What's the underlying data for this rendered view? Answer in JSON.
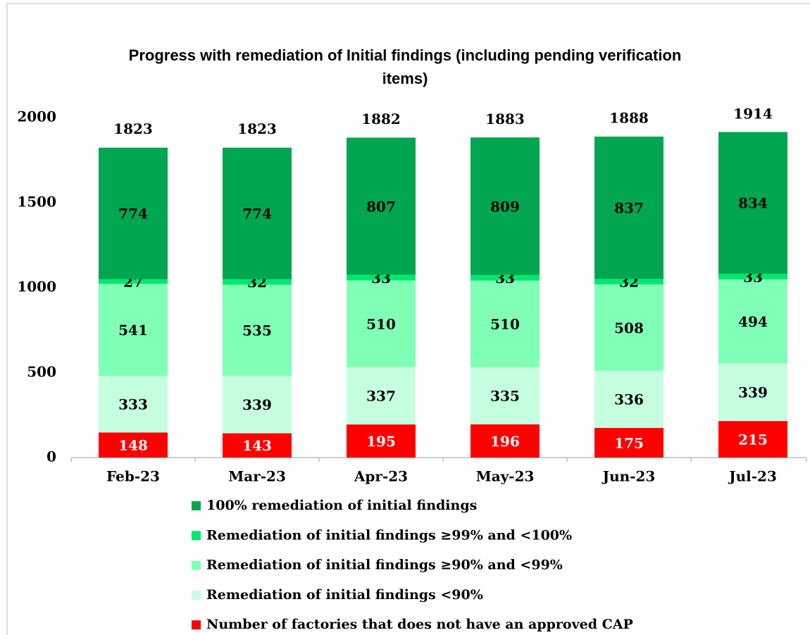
{
  "chart_data": {
    "type": "stacked_bar",
    "title": "Progress with remediation of Initial findings (including pending verification items)",
    "categories": [
      "Feb-23",
      "Mar-23",
      "Apr-23",
      "May-23",
      "Jun-23",
      "Jul-23"
    ],
    "series": [
      {
        "name": "Number of factories that does not have an approved CAP",
        "color": "#ff0000",
        "label_color": "#ffffff",
        "values": [
          148,
          143,
          195,
          196,
          175,
          215
        ]
      },
      {
        "name": "Remediation of initial findings <90%",
        "color": "#c6ffdf",
        "label_color": "#000000",
        "values": [
          333,
          339,
          337,
          335,
          336,
          339
        ]
      },
      {
        "name": "Remediation of initial findings ≥90% and <99%",
        "color": "#80ffb6",
        "label_color": "#000000",
        "values": [
          541,
          535,
          510,
          510,
          508,
          494
        ]
      },
      {
        "name": "Remediation of initial findings ≥99% and <100%",
        "color": "#00e86e",
        "label_color": "#000000",
        "values": [
          27,
          32,
          33,
          33,
          32,
          33
        ]
      },
      {
        "name": "100% remediation of initial findings",
        "color": "#00a650",
        "label_color": "#000000",
        "values": [
          774,
          774,
          807,
          809,
          837,
          834
        ]
      }
    ],
    "totals": [
      1823,
      1823,
      1882,
      1883,
      1888,
      1914
    ],
    "ylim": [
      0,
      2000
    ],
    "yticks": [
      0,
      500,
      1000,
      1500,
      2000
    ],
    "grid": false
  }
}
